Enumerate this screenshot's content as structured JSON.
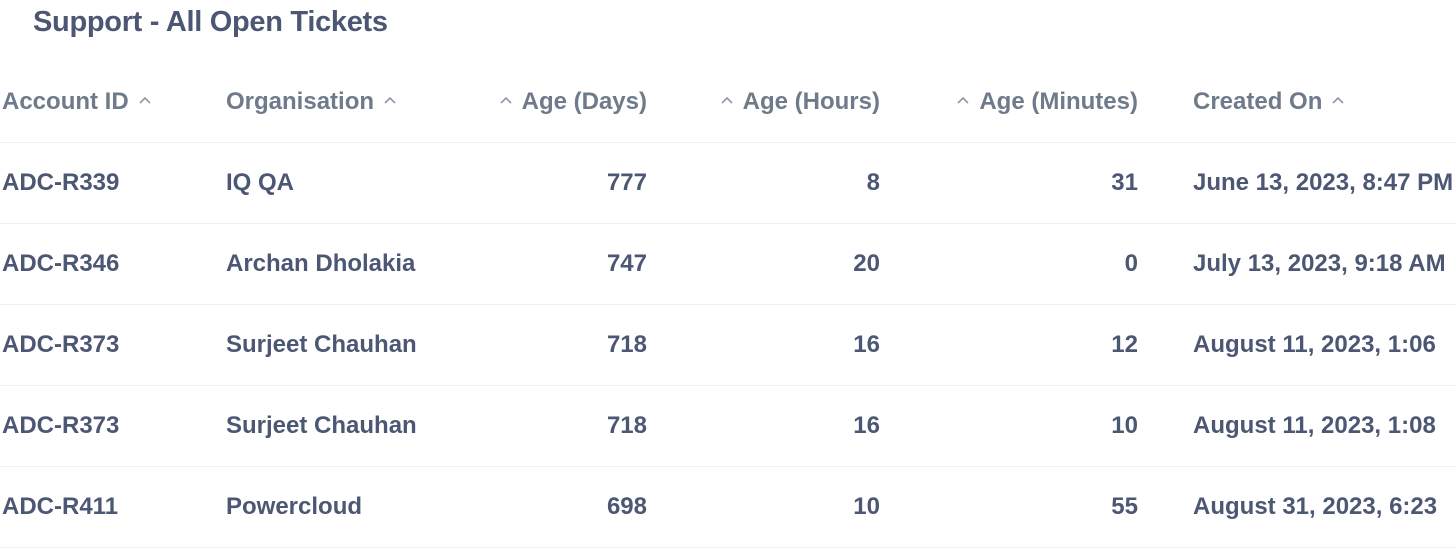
{
  "page": {
    "title": "Support - All Open Tickets"
  },
  "table": {
    "columns": [
      {
        "key": "account_id",
        "label": "Account ID",
        "sort_icon": "chevron-up-icon"
      },
      {
        "key": "organisation",
        "label": "Organisation",
        "sort_icon": "chevron-up-icon"
      },
      {
        "key": "age_days",
        "label": "Age (Days)",
        "sort_icon": "chevron-up-icon"
      },
      {
        "key": "age_hours",
        "label": "Age (Hours)",
        "sort_icon": "chevron-up-icon"
      },
      {
        "key": "age_minutes",
        "label": "Age (Minutes)",
        "sort_icon": "chevron-up-icon"
      },
      {
        "key": "created_on",
        "label": "Created On",
        "sort_icon": "chevron-up-icon"
      }
    ],
    "rows": [
      {
        "account_id": "ADC-R339",
        "organisation": "IQ QA",
        "age_days": "777",
        "age_hours": "8",
        "age_minutes": "31",
        "created_on": "June 13, 2023, 8:47 PM"
      },
      {
        "account_id": "ADC-R346",
        "organisation": "Archan Dholakia",
        "age_days": "747",
        "age_hours": "20",
        "age_minutes": "0",
        "created_on": "July 13, 2023, 9:18 AM"
      },
      {
        "account_id": "ADC-R373",
        "organisation": "Surjeet Chauhan",
        "age_days": "718",
        "age_hours": "16",
        "age_minutes": "12",
        "created_on": "August 11, 2023, 1:06"
      },
      {
        "account_id": "ADC-R373",
        "organisation": "Surjeet Chauhan",
        "age_days": "718",
        "age_hours": "16",
        "age_minutes": "10",
        "created_on": "August 11, 2023, 1:08"
      },
      {
        "account_id": "ADC-R411",
        "organisation": "Powercloud",
        "age_days": "698",
        "age_hours": "10",
        "age_minutes": "55",
        "created_on": "August 31, 2023, 6:23"
      }
    ]
  },
  "colors": {
    "text": "#4c5773",
    "header_text": "#6f7a8b",
    "row_divider": "#eef0f3",
    "background": "#ffffff"
  }
}
